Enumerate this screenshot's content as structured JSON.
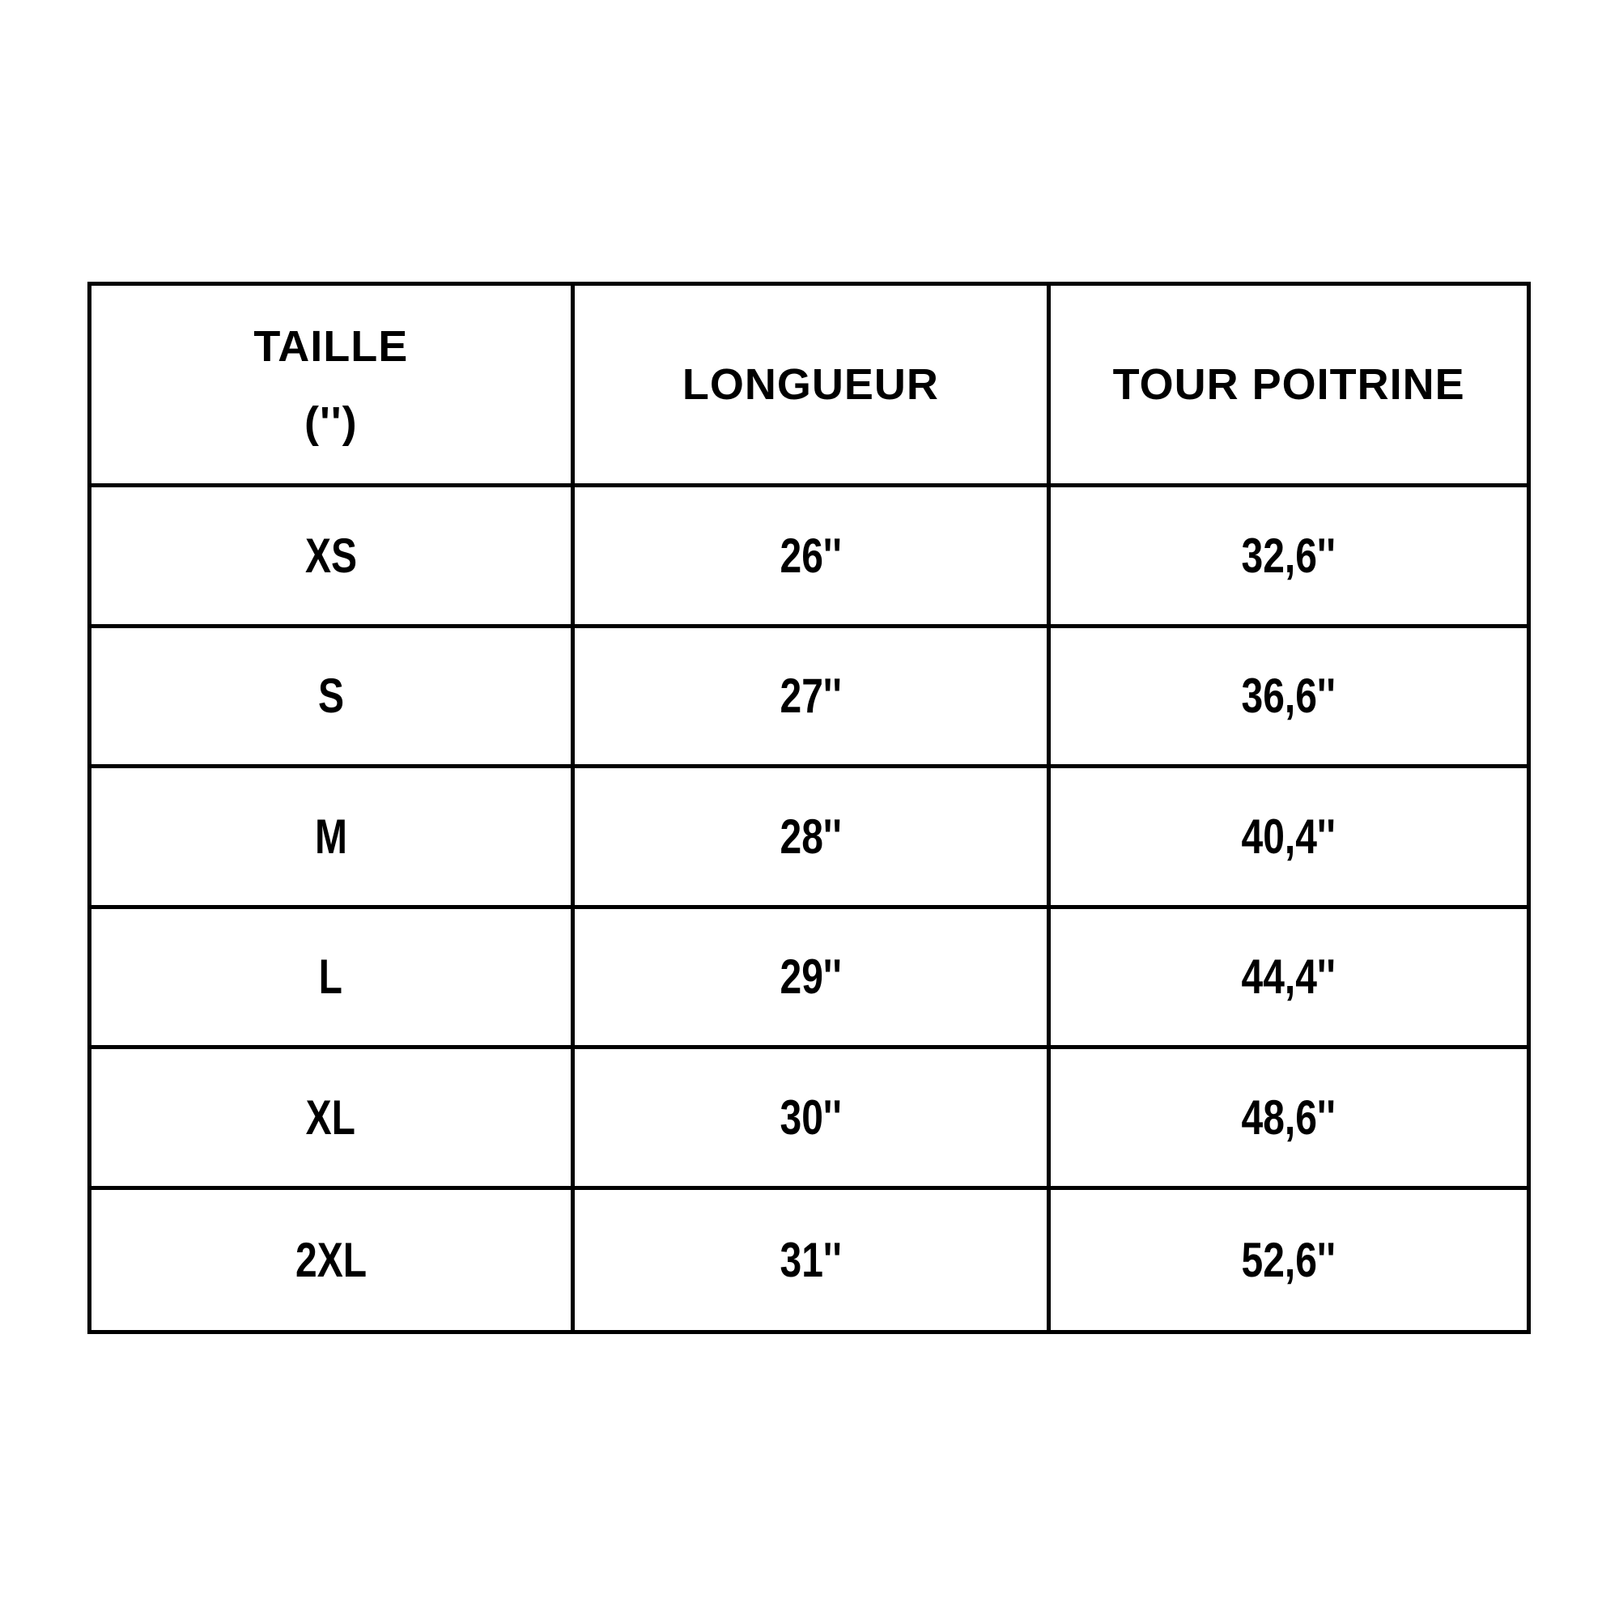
{
  "page": {
    "background_color": "#ffffff",
    "border_color": "#000000",
    "text_color": "#000000"
  },
  "table": {
    "columns": [
      {
        "label": "TAILLE",
        "sublabel": "('')"
      },
      {
        "label": "LONGUEUR",
        "sublabel": ""
      },
      {
        "label": "TOUR POITRINE",
        "sublabel": ""
      }
    ],
    "rows": [
      {
        "size": "XS",
        "longueur": "26''",
        "tour_poitrine": "32,6''"
      },
      {
        "size": "S",
        "longueur": "27''",
        "tour_poitrine": "36,6''"
      },
      {
        "size": "M",
        "longueur": "28''",
        "tour_poitrine": "40,4''"
      },
      {
        "size": "L",
        "longueur": "29''",
        "tour_poitrine": "44,4''"
      },
      {
        "size": "XL",
        "longueur": "30''",
        "tour_poitrine": "48,6''"
      },
      {
        "size": "2XL",
        "longueur": "31''",
        "tour_poitrine": "52,6''"
      }
    ]
  }
}
